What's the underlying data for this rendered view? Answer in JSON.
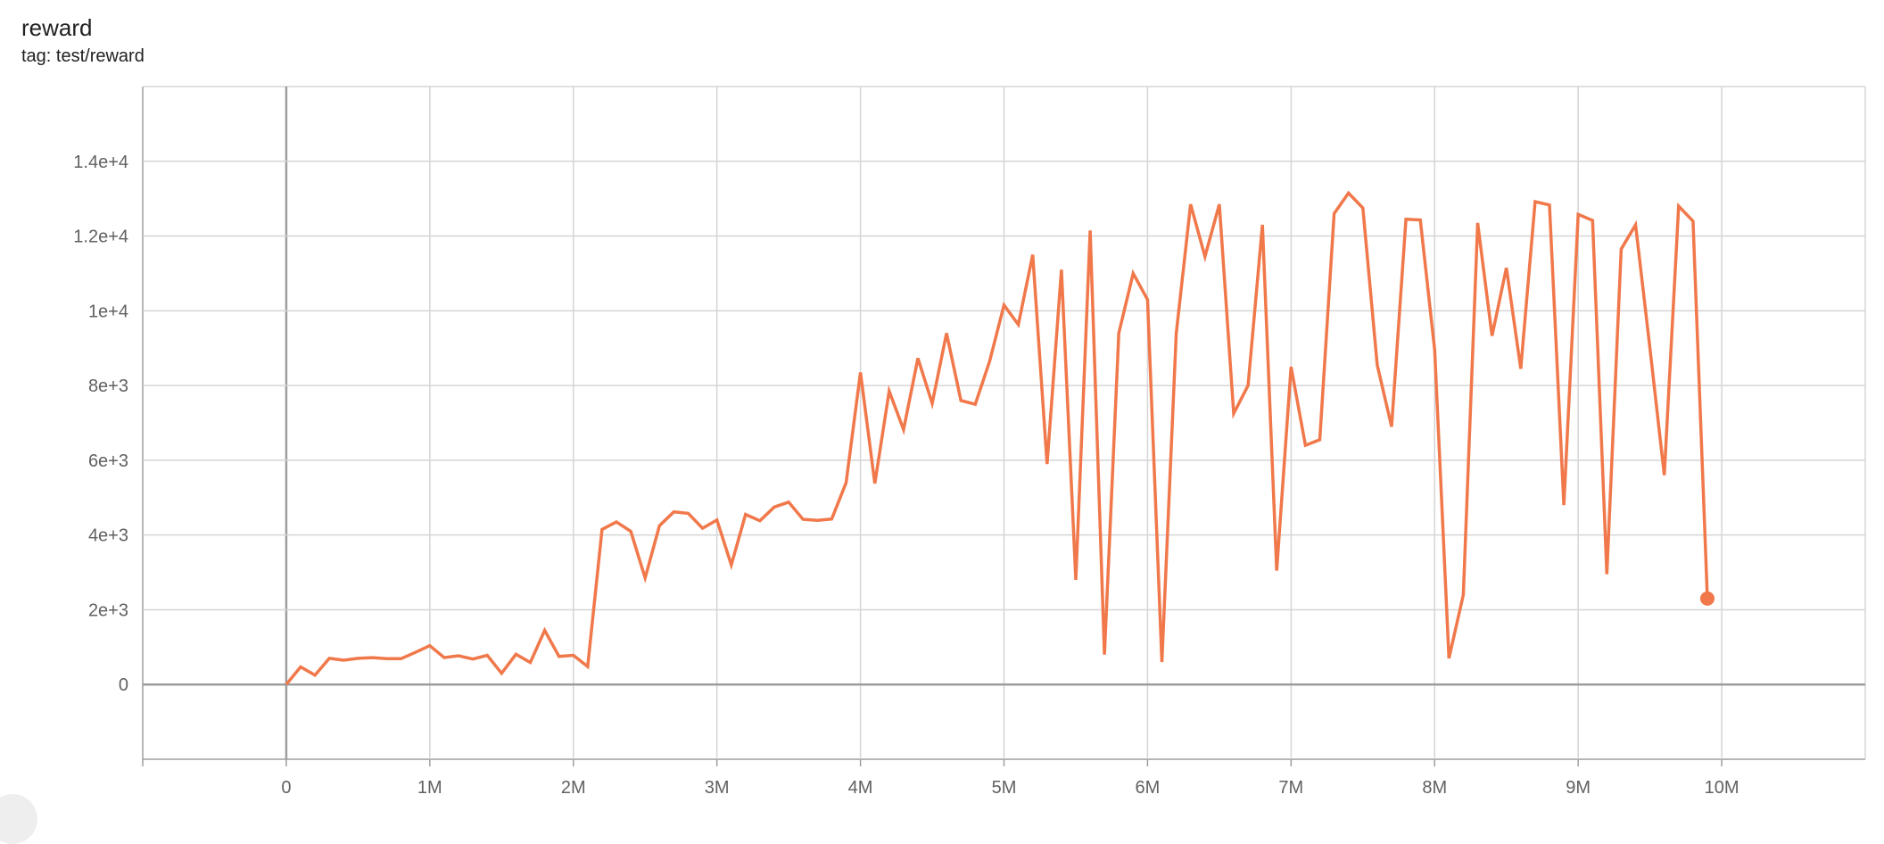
{
  "header": {
    "title": "reward",
    "tag": "tag: test/reward"
  },
  "colors": {
    "series": "#f0784a",
    "grid": "#d5d5d5",
    "axis": "#9e9e9e"
  },
  "chart_data": {
    "type": "line",
    "title": "reward",
    "subtitle": "tag: test/reward",
    "xlim": [
      -1000000,
      11000000
    ],
    "ylim": [
      -2000,
      16000
    ],
    "grid": true,
    "xticks": [
      0,
      1000000,
      2000000,
      3000000,
      4000000,
      5000000,
      6000000,
      7000000,
      8000000,
      9000000,
      10000000
    ],
    "xtick_labels": [
      "0",
      "1M",
      "2M",
      "3M",
      "4M",
      "5M",
      "6M",
      "7M",
      "8M",
      "9M",
      "10M"
    ],
    "yticks": [
      0,
      2000,
      4000,
      6000,
      8000,
      10000,
      12000,
      14000
    ],
    "ytick_labels": [
      "0",
      "2e+3",
      "4e+3",
      "6e+3",
      "8e+3",
      "1e+4",
      "1.2e+4",
      "1.4e+4"
    ],
    "series": [
      {
        "x_step": 100000,
        "values": [
          0,
          470,
          250,
          700,
          650,
          700,
          720,
          690,
          690,
          860,
          1040,
          720,
          770,
          680,
          780,
          300,
          810,
          590,
          1450,
          750,
          780,
          480,
          4150,
          4350,
          4100,
          2850,
          4250,
          4620,
          4580,
          4180,
          4400,
          3200,
          4550,
          4380,
          4750,
          4880,
          4420,
          4390,
          4430,
          5400,
          8350,
          5380,
          7850,
          6820,
          8730,
          7520,
          9400,
          7600,
          7500,
          8650,
          10150,
          9630,
          11500,
          5900,
          11100,
          2800,
          12150,
          800,
          9400,
          11000,
          10300,
          600,
          9400,
          12850,
          11450,
          12850,
          7250,
          8000,
          12300,
          3050,
          8500,
          6400,
          6550,
          12600,
          13150,
          12750,
          8550,
          6900,
          12450,
          12430,
          8950,
          700,
          2400,
          12350,
          9330,
          11150,
          8450,
          12920,
          12830,
          4800,
          12580,
          12420,
          2950,
          11650,
          12300,
          9000,
          5600,
          12800,
          12400,
          2300
        ]
      }
    ]
  }
}
